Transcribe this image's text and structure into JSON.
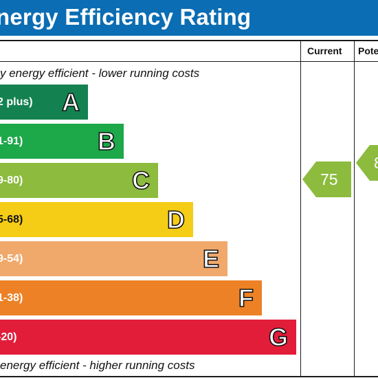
{
  "title": "nergy Efficiency Rating",
  "columns": {
    "current": "Current",
    "potential": "Pote"
  },
  "captions": {
    "top": "y energy efficient - lower running costs",
    "bottom": " energy efficient - higher running costs"
  },
  "bands": [
    {
      "range": "2 plus)",
      "letter": "A",
      "color": "#138250"
    },
    {
      "range": "1-91)",
      "letter": "B",
      "color": "#1da84a"
    },
    {
      "range": "9-80)",
      "letter": "C",
      "color": "#8cbb3e"
    },
    {
      "range": "5-68)",
      "letter": "D",
      "color": "#f5cc16"
    },
    {
      "range": "9-54)",
      "letter": "E",
      "color": "#f0a96b"
    },
    {
      "range": "1-38)",
      "letter": "F",
      "color": "#ec8126"
    },
    {
      "range": "-20)",
      "letter": "G",
      "color": "#e21d3a"
    }
  ],
  "current": {
    "value": "75",
    "color": "#8cbb3e"
  },
  "potential": {
    "value": "8",
    "color": "#8cbb3e"
  }
}
